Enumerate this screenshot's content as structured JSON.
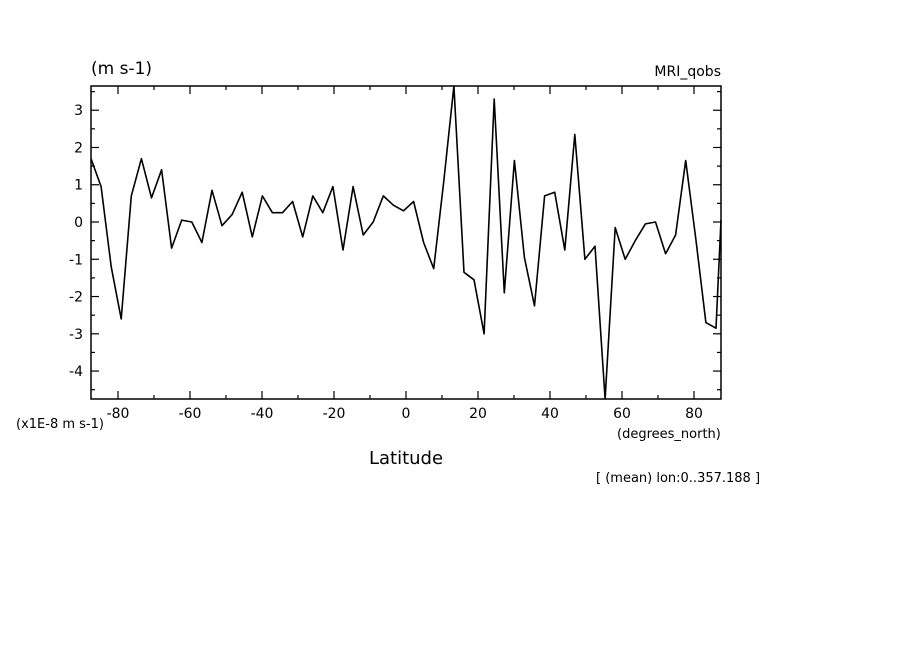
{
  "chart_data": {
    "type": "line",
    "title": "MRI_qobs",
    "units_label": "(m s-1)",
    "scale_label": "(x1E-8 m s-1)",
    "xlabel": "Latitude",
    "xunits_label": "(degrees_north)",
    "annotation": "[ (mean) lon:0..357.188 ]",
    "xlim": [
      -87.5,
      87.5
    ],
    "ylim": [
      -4.75,
      3.65
    ],
    "xticks": [
      -80,
      -60,
      -40,
      -20,
      0,
      20,
      40,
      60,
      80
    ],
    "xtick_labels": [
      "-80",
      "-60",
      "-40",
      "-20",
      "0",
      "20",
      "40",
      "60",
      "80"
    ],
    "yticks": [
      -4,
      -3,
      -2,
      -1,
      0,
      1,
      2,
      3
    ],
    "ytick_labels": [
      "-4",
      "-3",
      "-2",
      "-1",
      "0",
      "1",
      "2",
      "3"
    ],
    "grid": false,
    "series": [
      {
        "x": [
          -87.5,
          -84.7,
          -81.9,
          -79.1,
          -76.3,
          -73.5,
          -70.7,
          -67.9,
          -65.1,
          -62.3,
          -59.5,
          -56.7,
          -53.9,
          -51.1,
          -48.3,
          -45.5,
          -42.7,
          -39.9,
          -37.1,
          -34.3,
          -31.5,
          -28.7,
          -25.9,
          -23.1,
          -20.3,
          -17.5,
          -14.7,
          -11.9,
          -9.1,
          -6.3,
          -3.5,
          -0.7,
          2.1,
          4.9,
          7.7,
          10.5,
          13.3,
          16.1,
          18.9,
          21.7,
          24.5,
          27.3,
          30.1,
          32.9,
          35.7,
          38.5,
          41.3,
          44.1,
          46.9,
          49.7,
          52.5,
          55.3,
          58.1,
          60.9,
          63.7,
          66.5,
          69.3,
          72.1,
          74.9,
          77.7,
          80.5,
          83.3,
          86.1,
          87.5
        ],
        "values": [
          1.7,
          0.95,
          -1.2,
          -2.6,
          0.7,
          1.7,
          0.65,
          1.4,
          -0.7,
          0.05,
          0.0,
          -0.55,
          0.85,
          -0.1,
          0.2,
          0.8,
          -0.4,
          0.7,
          0.25,
          0.25,
          0.55,
          -0.4,
          0.7,
          0.25,
          0.95,
          -0.75,
          0.95,
          -0.35,
          0.0,
          0.7,
          0.45,
          0.3,
          0.55,
          -0.55,
          -1.25,
          1.1,
          3.65,
          -1.35,
          -1.55,
          -3.0,
          3.3,
          -1.9,
          1.65,
          -0.95,
          -2.25,
          0.7,
          0.8,
          -0.75,
          2.35,
          -1.0,
          -0.65,
          -4.75,
          -0.15,
          -1.0,
          -0.5,
          -0.05,
          0.0,
          -0.85,
          -0.35,
          1.65,
          -0.45,
          -2.7,
          -2.85,
          0.05
        ]
      }
    ]
  }
}
